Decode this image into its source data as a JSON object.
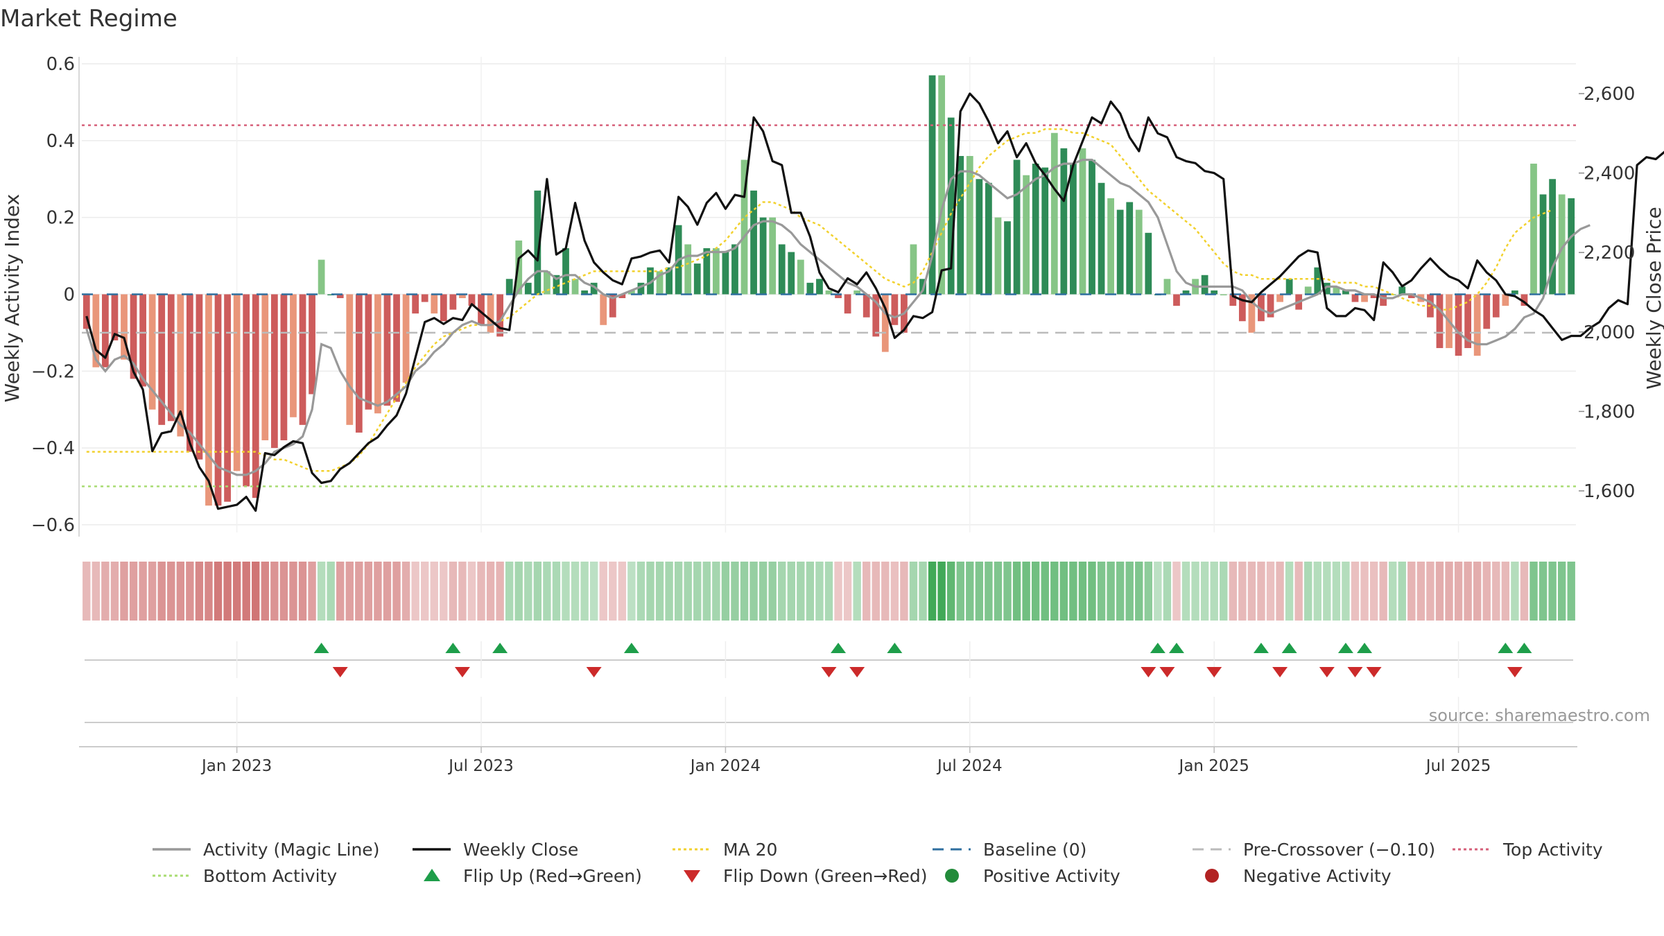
{
  "chart_data": {
    "type": "bar",
    "title": "Market Regime",
    "ylabel_left": "Weekly Activity Index",
    "ylabel_right": "Weekly Close Price",
    "source": "source: sharemaestro.com",
    "ylim_left": [
      -0.62,
      0.6
    ],
    "ylim_right": [
      1500,
      2650
    ],
    "left_ticks": [
      "0.6",
      "0.4",
      "0.2",
      "0",
      "−0.2",
      "−0.4",
      "−0.6"
    ],
    "left_tick_values": [
      0.6,
      0.4,
      0.2,
      0,
      -0.2,
      -0.4,
      -0.6
    ],
    "right_ticks": [
      "2,600",
      "2,400",
      "2,200",
      "2,000",
      "1,800",
      "1,600"
    ],
    "right_tick_values": [
      2600,
      2400,
      2200,
      2000,
      1800,
      1600
    ],
    "x_ticks": [
      "Jan 2023",
      "Jul 2023",
      "Jan 2024",
      "Jul 2024",
      "Jan 2025",
      "Jul 2025"
    ],
    "x_tick_index": [
      16,
      42,
      68,
      94,
      120,
      146
    ],
    "thresholds": {
      "top": 0.44,
      "bottom": -0.5,
      "pre_crossover": -0.1,
      "baseline": 0,
      "ma20_start": -0.41
    },
    "activity": [
      -0.09,
      -0.19,
      -0.19,
      -0.12,
      -0.17,
      -0.22,
      -0.24,
      -0.3,
      -0.34,
      -0.33,
      -0.37,
      -0.41,
      -0.43,
      -0.55,
      -0.55,
      -0.54,
      -0.46,
      -0.5,
      -0.53,
      -0.38,
      -0.4,
      -0.38,
      -0.32,
      -0.34,
      -0.26,
      0.09,
      0.0,
      -0.01,
      -0.34,
      -0.36,
      -0.3,
      -0.31,
      -0.29,
      -0.28,
      -0.23,
      -0.05,
      -0.02,
      -0.05,
      -0.07,
      -0.04,
      -0.01,
      -0.03,
      -0.08,
      -0.1,
      -0.11,
      0.04,
      0.14,
      0.03,
      0.27,
      0.06,
      0.05,
      0.12,
      0.04,
      0.01,
      0.03,
      -0.08,
      -0.06,
      -0.01,
      0.01,
      0.03,
      0.07,
      0.06,
      0.07,
      0.18,
      0.13,
      0.08,
      0.12,
      0.12,
      0.11,
      0.13,
      0.35,
      0.27,
      0.2,
      0.2,
      0.13,
      0.11,
      0.09,
      0.03,
      0.04,
      0.01,
      -0.01,
      -0.05,
      0.01,
      -0.06,
      -0.11,
      -0.15,
      -0.08,
      -0.1,
      0.13,
      0.04,
      0.57,
      0.57,
      0.46,
      0.36,
      0.36,
      0.3,
      0.29,
      0.2,
      0.19,
      0.35,
      0.31,
      0.34,
      0.33,
      0.42,
      0.38,
      0.34,
      0.38,
      0.35,
      0.29,
      0.25,
      0.22,
      0.24,
      0.22,
      0.16,
      0.0,
      0.04,
      -0.03,
      0.01,
      0.04,
      0.05,
      0.01,
      0.0,
      -0.03,
      -0.07,
      -0.1,
      -0.07,
      -0.06,
      -0.02,
      0.04,
      -0.04,
      0.02,
      0.07,
      0.03,
      0.02,
      0.01,
      -0.02,
      -0.02,
      -0.01,
      -0.03,
      0.0,
      0.02,
      -0.01,
      -0.02,
      -0.06,
      -0.14,
      -0.14,
      -0.16,
      -0.14,
      -0.16,
      -0.09,
      -0.06,
      -0.03,
      0.01,
      -0.03,
      0.34,
      0.26,
      0.3,
      0.26,
      0.25
    ],
    "close": [
      2040,
      1955,
      1935,
      1995,
      1985,
      1900,
      1855,
      1700,
      1745,
      1750,
      1800,
      1720,
      1660,
      1625,
      1555,
      1560,
      1565,
      1585,
      1550,
      1695,
      1690,
      1710,
      1725,
      1720,
      1645,
      1620,
      1625,
      1655,
      1670,
      1695,
      1720,
      1735,
      1765,
      1790,
      1845,
      1935,
      2025,
      2035,
      2020,
      2035,
      2030,
      2070,
      2050,
      2030,
      2010,
      2005,
      2185,
      2205,
      2180,
      2385,
      2195,
      2210,
      2325,
      2230,
      2175,
      2150,
      2130,
      2120,
      2185,
      2190,
      2200,
      2205,
      2175,
      2340,
      2315,
      2270,
      2325,
      2350,
      2310,
      2345,
      2340,
      2540,
      2505,
      2430,
      2420,
      2300,
      2300,
      2240,
      2150,
      2110,
      2100,
      2135,
      2120,
      2150,
      2110,
      2060,
      1985,
      2005,
      2040,
      2035,
      2050,
      2155,
      2160,
      2555,
      2600,
      2575,
      2530,
      2475,
      2505,
      2440,
      2475,
      2425,
      2395,
      2360,
      2330,
      2420,
      2480,
      2540,
      2525,
      2580,
      2550,
      2490,
      2455,
      2540,
      2500,
      2490,
      2440,
      2430,
      2425,
      2405,
      2400,
      2385,
      2090,
      2080,
      2075,
      2100,
      2120,
      2140,
      2165,
      2190,
      2205,
      2200,
      2060,
      2040,
      2040,
      2060,
      2055,
      2030,
      2175,
      2150,
      2115,
      2130,
      2160,
      2185,
      2160,
      2140,
      2130,
      2110,
      2180,
      2150,
      2130,
      2095,
      2090,
      2075,
      2055,
      2040,
      2010,
      1980,
      1990,
      1990,
      2010,
      2025,
      2060,
      2080,
      2070,
      2420,
      2440,
      2435,
      2455,
      2450,
      2450,
      2455,
      2450
    ],
    "magic_line": [
      -0.09,
      -0.17,
      -0.2,
      -0.17,
      -0.16,
      -0.18,
      -0.22,
      -0.25,
      -0.28,
      -0.31,
      -0.34,
      -0.36,
      -0.39,
      -0.42,
      -0.45,
      -0.46,
      -0.47,
      -0.47,
      -0.46,
      -0.44,
      -0.41,
      -0.4,
      -0.39,
      -0.37,
      -0.3,
      -0.13,
      -0.14,
      -0.2,
      -0.24,
      -0.27,
      -0.28,
      -0.29,
      -0.28,
      -0.26,
      -0.24,
      -0.2,
      -0.18,
      -0.15,
      -0.13,
      -0.1,
      -0.08,
      -0.07,
      -0.08,
      -0.08,
      -0.07,
      -0.03,
      0.01,
      0.04,
      0.06,
      0.06,
      0.04,
      0.05,
      0.05,
      0.03,
      0.02,
      0.0,
      -0.01,
      0.0,
      0.01,
      0.02,
      0.03,
      0.05,
      0.06,
      0.09,
      0.1,
      0.1,
      0.11,
      0.11,
      0.11,
      0.12,
      0.15,
      0.18,
      0.19,
      0.19,
      0.18,
      0.16,
      0.13,
      0.11,
      0.09,
      0.07,
      0.05,
      0.03,
      0.02,
      0.0,
      -0.02,
      -0.05,
      -0.06,
      -0.05,
      -0.02,
      0.01,
      0.1,
      0.22,
      0.3,
      0.32,
      0.32,
      0.31,
      0.29,
      0.27,
      0.25,
      0.26,
      0.28,
      0.3,
      0.31,
      0.33,
      0.34,
      0.34,
      0.35,
      0.35,
      0.33,
      0.31,
      0.29,
      0.28,
      0.26,
      0.24,
      0.2,
      0.13,
      0.06,
      0.03,
      0.02,
      0.02,
      0.02,
      0.02,
      0.02,
      0.01,
      -0.02,
      -0.04,
      -0.05,
      -0.04,
      -0.03,
      -0.02,
      -0.01,
      0.0,
      0.02,
      0.02,
      0.01,
      0.01,
      0.0,
      0.0,
      -0.01,
      -0.01,
      0.0,
      0.0,
      -0.01,
      -0.02,
      -0.04,
      -0.07,
      -0.1,
      -0.12,
      -0.13,
      -0.13,
      -0.12,
      -0.11,
      -0.09,
      -0.06,
      -0.05,
      -0.01,
      0.07,
      0.12,
      0.15,
      0.17,
      0.18
    ],
    "ma20": [
      -0.41,
      -0.41,
      -0.41,
      -0.41,
      -0.41,
      -0.41,
      -0.41,
      -0.41,
      -0.41,
      -0.41,
      -0.41,
      -0.41,
      -0.41,
      -0.41,
      -0.41,
      -0.41,
      -0.41,
      -0.41,
      -0.41,
      -0.42,
      -0.43,
      -0.43,
      -0.44,
      -0.45,
      -0.46,
      -0.46,
      -0.46,
      -0.45,
      -0.44,
      -0.42,
      -0.39,
      -0.35,
      -0.31,
      -0.27,
      -0.23,
      -0.19,
      -0.16,
      -0.13,
      -0.11,
      -0.1,
      -0.09,
      -0.08,
      -0.08,
      -0.08,
      -0.07,
      -0.06,
      -0.04,
      -0.02,
      0.0,
      0.01,
      0.02,
      0.03,
      0.04,
      0.05,
      0.06,
      0.06,
      0.06,
      0.06,
      0.06,
      0.06,
      0.06,
      0.06,
      0.07,
      0.07,
      0.08,
      0.09,
      0.1,
      0.12,
      0.14,
      0.17,
      0.2,
      0.22,
      0.24,
      0.24,
      0.23,
      0.22,
      0.2,
      0.19,
      0.18,
      0.16,
      0.14,
      0.12,
      0.1,
      0.08,
      0.06,
      0.04,
      0.03,
      0.02,
      0.03,
      0.06,
      0.11,
      0.16,
      0.21,
      0.25,
      0.29,
      0.33,
      0.36,
      0.38,
      0.4,
      0.41,
      0.42,
      0.42,
      0.43,
      0.43,
      0.43,
      0.42,
      0.42,
      0.41,
      0.4,
      0.39,
      0.36,
      0.33,
      0.3,
      0.27,
      0.25,
      0.23,
      0.21,
      0.19,
      0.17,
      0.14,
      0.11,
      0.08,
      0.06,
      0.05,
      0.05,
      0.04,
      0.04,
      0.04,
      0.04,
      0.04,
      0.04,
      0.04,
      0.04,
      0.03,
      0.03,
      0.03,
      0.02,
      0.02,
      0.01,
      0.0,
      -0.01,
      -0.02,
      -0.03,
      -0.03,
      -0.04,
      -0.04,
      -0.03,
      -0.02,
      0.0,
      0.03,
      0.07,
      0.12,
      0.16,
      0.18,
      0.2,
      0.21,
      0.22
    ],
    "flip_up_index": [
      25,
      39,
      44,
      58,
      80,
      86,
      114,
      116,
      125,
      128,
      134,
      136,
      151,
      153
    ],
    "flip_down_index": [
      27,
      40,
      54,
      79,
      82,
      113,
      115,
      120,
      127,
      132,
      135,
      137,
      152
    ],
    "regime_strength": [
      0.3,
      0.3,
      0.4,
      0.4,
      0.5,
      0.5,
      0.5,
      0.5,
      0.6,
      0.6,
      0.6,
      0.6,
      0.7,
      0.7,
      0.8,
      0.8,
      0.8,
      0.8,
      0.85,
      0.7,
      0.6,
      0.6,
      0.6,
      0.6,
      0.5,
      0.25,
      0.3,
      0.5,
      0.5,
      0.5,
      0.5,
      0.5,
      0.5,
      0.5,
      0.4,
      0.2,
      0.2,
      0.2,
      0.2,
      0.3,
      0.3,
      0.2,
      0.3,
      0.35,
      0.35,
      0.3,
      0.35,
      0.3,
      0.35,
      0.3,
      0.3,
      0.25,
      0.25,
      0.25,
      0.2,
      0.2,
      0.2,
      0.2,
      0.2,
      0.3,
      0.35,
      0.35,
      0.35,
      0.35,
      0.35,
      0.35,
      0.35,
      0.35,
      0.45,
      0.45,
      0.45,
      0.45,
      0.45,
      0.45,
      0.35,
      0.35,
      0.35,
      0.35,
      0.3,
      0.3,
      0.2,
      0.2,
      0.25,
      0.3,
      0.3,
      0.3,
      0.25,
      0.3,
      0.35,
      0.35,
      1.0,
      1.0,
      0.8,
      0.6,
      0.6,
      0.6,
      0.6,
      0.6,
      0.6,
      0.7,
      0.7,
      0.7,
      0.7,
      0.7,
      0.7,
      0.7,
      0.7,
      0.7,
      0.6,
      0.6,
      0.6,
      0.6,
      0.6,
      0.5,
      0.2,
      0.3,
      0.2,
      0.25,
      0.25,
      0.25,
      0.25,
      0.3,
      0.3,
      0.3,
      0.3,
      0.3,
      0.25,
      0.3,
      0.25,
      0.3,
      0.3,
      0.25,
      0.25,
      0.25,
      0.25,
      0.25,
      0.25,
      0.25,
      0.3,
      0.25,
      0.3,
      0.35,
      0.35,
      0.35,
      0.4,
      0.4,
      0.4,
      0.4,
      0.4,
      0.35,
      0.3,
      0.3,
      0.25,
      0.3,
      0.6,
      0.6,
      0.6,
      0.6,
      0.6
    ],
    "legend": [
      {
        "label": "Activity (Magic Line)",
        "symbol": "solid-line",
        "color": "#999999"
      },
      {
        "label": "Weekly Close",
        "symbol": "solid-line",
        "color": "#111111"
      },
      {
        "label": "MA 20",
        "symbol": "dotted-line",
        "color": "#f2d12e"
      },
      {
        "label": "Baseline (0)",
        "symbol": "dashed-line",
        "color": "#2f6f9f"
      },
      {
        "label": "Pre-Crossover (−0.10)",
        "symbol": "dashed-line",
        "color": "#bbbbbb"
      },
      {
        "label": "Top Activity",
        "symbol": "dotted-line",
        "color": "#d6607a"
      },
      {
        "label": "Bottom Activity",
        "symbol": "dotted-line",
        "color": "#a8dc72"
      },
      {
        "label": "Flip Up (Red→Green)",
        "symbol": "triangle-up",
        "color": "#1e9e4a"
      },
      {
        "label": "Flip Down (Green→Red)",
        "symbol": "triangle-down",
        "color": "#cc2a2a"
      },
      {
        "label": "Positive Activity",
        "symbol": "circle",
        "color": "#228b3a"
      },
      {
        "label": "Negative Activity",
        "symbol": "circle",
        "color": "#b22222"
      }
    ],
    "colors": {
      "pos_strong": "#2e8b57",
      "pos_light": "#86c586",
      "neg_strong": "#cd5c5c",
      "neg_light": "#e9967a",
      "close": "#111111",
      "magic": "#999999",
      "ma20": "#f2d12e",
      "baseline": "#2f6f9f",
      "pre": "#bbbbbb",
      "top": "#d6607a",
      "bottom": "#a8dc72",
      "flip_up": "#1e9e4a",
      "flip_down": "#cc2a2a"
    }
  }
}
